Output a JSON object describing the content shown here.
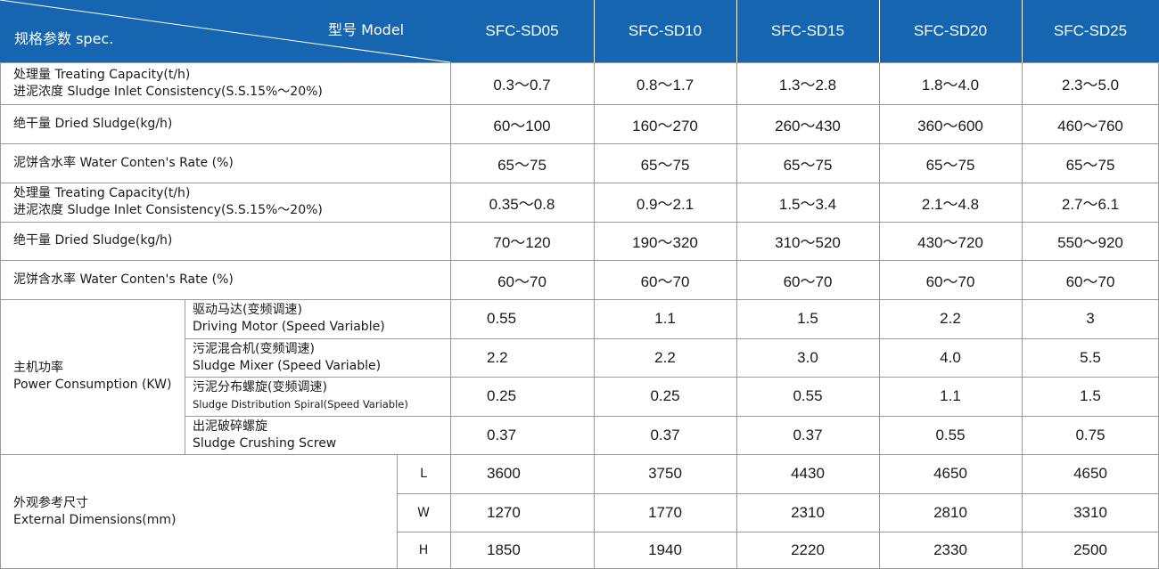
{
  "header": {
    "spec_label": "规格参数 spec.",
    "model_label": "型号 Model",
    "models": [
      "SFC-SD05",
      "SFC-SD10",
      "SFC-SD15",
      "SFC-SD20",
      "SFC-SD25"
    ]
  },
  "rows": [
    {
      "label1": "处理量 Treating Capacity(t/h)",
      "label2": "进泥浓度 Sludge Inlet Consistency(S.S.15%～20%)",
      "values": [
        "0.3～0.7",
        "0.8～1.7",
        "1.3～2.8",
        "1.8～4.0",
        "2.3～5.0"
      ]
    },
    {
      "label1": "绝干量 Dried Sludge(kg/h)",
      "label2": "",
      "values": [
        "60～100",
        "160～270",
        "260～430",
        "360～600",
        "460～760"
      ]
    },
    {
      "label1": "泥饼含水率 Water Conten's Rate (%)",
      "label2": "",
      "values": [
        "65～75",
        "65～75",
        "65～75",
        "65～75",
        "65～75"
      ]
    },
    {
      "label1": "处理量 Treating Capacity(t/h)",
      "label2": "进泥浓度 Sludge Inlet Consistency(S.S.15%～20%)",
      "values": [
        "0.35～0.8",
        "0.9～2.1",
        "1.5～3.4",
        "2.1～4.8",
        "2.7～6.1"
      ]
    },
    {
      "label1": "绝干量 Dried Sludge(kg/h)",
      "label2": "",
      "values": [
        "70～120",
        "190～320",
        "310～520",
        "430～720",
        "550～920"
      ]
    },
    {
      "label1": "泥饼含水率 Water Conten's Rate (%)",
      "label2": "",
      "values": [
        "60～70",
        "60～70",
        "60～70",
        "60～70",
        "60～70"
      ]
    }
  ],
  "power": {
    "label1": "主机功率",
    "label2": "Power Consumption (KW)",
    "subs": [
      {
        "label1": "驱动马达(变频调速)",
        "label2": "Driving Motor (Speed Variable)",
        "values": [
          "0.55",
          "1.1",
          "1.5",
          "2.2",
          "3"
        ]
      },
      {
        "label1": "污泥混合机(变频调速)",
        "label2": "Sludge Mixer (Speed Variable)",
        "values": [
          "2.2",
          "2.2",
          "3.0",
          "4.0",
          "5.5"
        ]
      },
      {
        "label1": "污泥分布螺旋(变频调速)",
        "label2": "Sludge Distribution Spiral(Speed Variable)",
        "values": [
          "0.25",
          "0.25",
          "0.55",
          "1.1",
          "1.5"
        ]
      },
      {
        "label1": "出泥破碎螺旋",
        "label2": "Sludge Crushing Screw",
        "values": [
          "0.37",
          "0.37",
          "0.37",
          "0.55",
          "0.75"
        ]
      }
    ]
  },
  "dimensions": {
    "label1": "外观参考尺寸",
    "label2": "External Dimensions(mm)",
    "subs": [
      {
        "key": "L",
        "values": [
          "3600",
          "3750",
          "4430",
          "4650",
          "4650"
        ]
      },
      {
        "key": "W",
        "values": [
          "1270",
          "1770",
          "2310",
          "2810",
          "3310"
        ]
      },
      {
        "key": "H",
        "values": [
          "1850",
          "1940",
          "2220",
          "2330",
          "2500"
        ]
      }
    ]
  }
}
